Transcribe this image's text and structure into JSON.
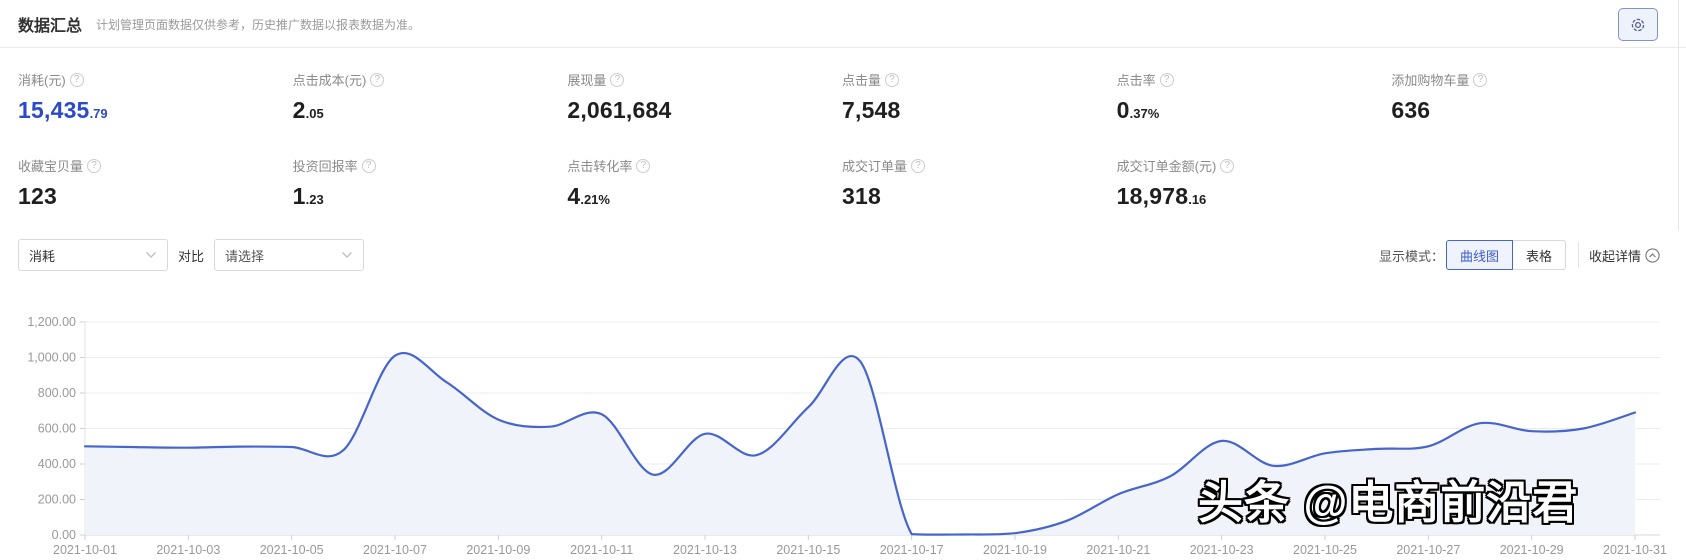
{
  "header": {
    "title": "数据汇总",
    "subtitle": "计划管理页面数据仅供参考，历史推广数据以报表数据为准。"
  },
  "metrics": [
    {
      "label": "消耗(元)",
      "main": "15,435",
      "sub": ".79",
      "accent": true
    },
    {
      "label": "点击成本(元)",
      "main": "2",
      "sub": ".05",
      "accent": false
    },
    {
      "label": "展现量",
      "main": "2,061,684",
      "sub": "",
      "accent": false
    },
    {
      "label": "点击量",
      "main": "7,548",
      "sub": "",
      "accent": false
    },
    {
      "label": "点击率",
      "main": "0",
      "sub": ".37%",
      "accent": false
    },
    {
      "label": "添加购物车量",
      "main": "636",
      "sub": "",
      "accent": false
    },
    {
      "label": "收藏宝贝量",
      "main": "123",
      "sub": "",
      "accent": false
    },
    {
      "label": "投资回报率",
      "main": "1",
      "sub": ".23",
      "accent": false
    },
    {
      "label": "点击转化率",
      "main": "4",
      "sub": ".21%",
      "accent": false
    },
    {
      "label": "成交订单量",
      "main": "318",
      "sub": "",
      "accent": false
    },
    {
      "label": "成交订单金额(元)",
      "main": "18,978",
      "sub": ".16",
      "accent": false
    }
  ],
  "controls": {
    "metric_select_value": "消耗",
    "compare_label": "对比",
    "compare_placeholder": "请选择",
    "display_mode_label": "显示模式：",
    "mode_curve": "曲线图",
    "mode_table": "表格",
    "collapse_label": "收起详情"
  },
  "chart_data": {
    "type": "line",
    "series": [
      {
        "name": "消耗",
        "x": [
          "2021-10-01",
          "2021-10-02",
          "2021-10-03",
          "2021-10-04",
          "2021-10-05",
          "2021-10-06",
          "2021-10-07",
          "2021-10-08",
          "2021-10-09",
          "2021-10-10",
          "2021-10-11",
          "2021-10-12",
          "2021-10-13",
          "2021-10-14",
          "2021-10-15",
          "2021-10-16",
          "2021-10-17",
          "2021-10-18",
          "2021-10-19",
          "2021-10-20",
          "2021-10-21",
          "2021-10-22",
          "2021-10-23",
          "2021-10-24",
          "2021-10-25",
          "2021-10-26",
          "2021-10-27",
          "2021-10-28",
          "2021-10-29",
          "2021-10-30",
          "2021-10-31"
        ],
        "values": [
          500,
          495,
          492,
          498,
          496,
          478,
          1010,
          860,
          650,
          610,
          680,
          340,
          570,
          450,
          720,
          980,
          5,
          3,
          10,
          80,
          230,
          330,
          530,
          390,
          460,
          485,
          500,
          630,
          585,
          600,
          690
        ]
      }
    ],
    "title": "",
    "xlabel": "",
    "ylabel": "",
    "ylim": [
      0,
      1200
    ],
    "y_tick_labels": [
      "0.00",
      "200.00",
      "400.00",
      "600.00",
      "800.00",
      "1,000.00",
      "1,200.00"
    ],
    "x_tick_labels": [
      "2021-10-01",
      "2021-10-03",
      "2021-10-05",
      "2021-10-07",
      "2021-10-09",
      "2021-10-11",
      "2021-10-13",
      "2021-10-15",
      "2021-10-17",
      "2021-10-19",
      "2021-10-21",
      "2021-10-23",
      "2021-10-25",
      "2021-10-27",
      "2021-10-29",
      "2021-10-31"
    ],
    "grid": "horizontal",
    "legend": "none",
    "line_color": "#4565cd",
    "area_color": "#f1f3fa",
    "smooth": true
  },
  "watermark": "头条 @电商前沿君",
  "colors": {
    "accent_blue": "#2b4acb",
    "active_button": "#3f5cc8",
    "axis_text": "#999999",
    "gridline": "#ececec"
  }
}
